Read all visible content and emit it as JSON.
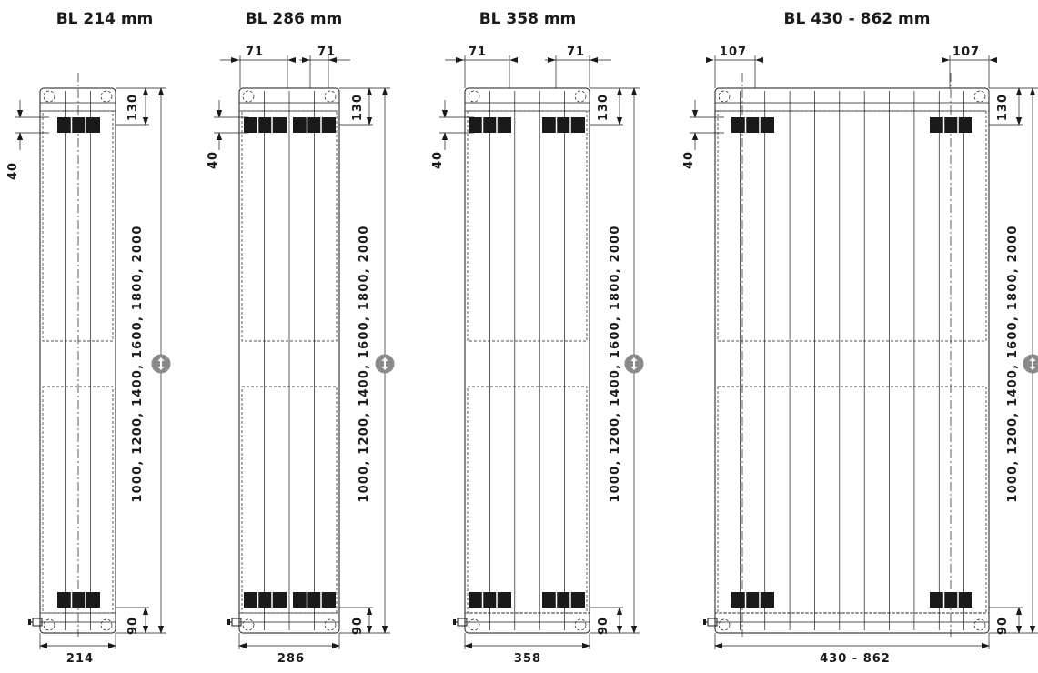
{
  "radiators": [
    {
      "title": "BL 214 mm",
      "width_label": "214",
      "top_offset_label": "130",
      "bracket_label": "40",
      "bottom_offset_label": "90",
      "heights_label": "1000, 1200, 1400, 1600, 1800, 2000",
      "side_offset_label": ""
    },
    {
      "title": "BL 286 mm",
      "width_label": "286",
      "top_offset_label": "130",
      "bracket_label": "40",
      "bottom_offset_label": "90",
      "heights_label": "1000, 1200, 1400, 1600, 1800, 2000",
      "side_offset_label": "71"
    },
    {
      "title": "BL 358 mm",
      "width_label": "358",
      "top_offset_label": "130",
      "bracket_label": "40",
      "bottom_offset_label": "90",
      "heights_label": "1000, 1200, 1400, 1600, 1800, 2000",
      "side_offset_label": "71"
    },
    {
      "title": "BL 430 - 862 mm",
      "width_label": "430 - 862",
      "top_offset_label": "130",
      "bracket_label": "40",
      "bottom_offset_label": "90",
      "heights_label": "1000, 1200, 1400, 1600, 1800, 2000",
      "side_offset_label": "107"
    }
  ]
}
